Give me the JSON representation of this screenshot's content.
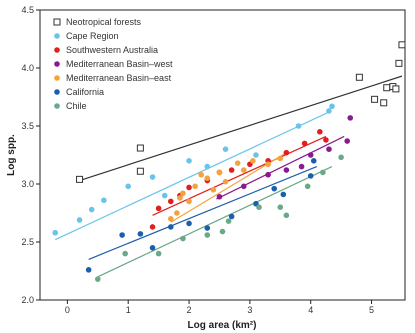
{
  "chart_data": {
    "type": "scatter",
    "xlabel": "Log area (km²)",
    "ylabel": "Log spp.",
    "xlim": [
      -0.45,
      5.55
    ],
    "ylim": [
      2.0,
      4.5
    ],
    "xticks": [
      0,
      1,
      2,
      3,
      4,
      5
    ],
    "yticks": [
      2.0,
      2.5,
      3.0,
      3.5,
      4.0,
      4.5
    ],
    "xtick_labels": [
      "0",
      "1",
      "2",
      "3",
      "4",
      "5"
    ],
    "ytick_labels": [
      "2.0",
      "2.5",
      "3.0",
      "3.5",
      "4.0",
      "4.5"
    ],
    "grid": false,
    "legend_position": "top-left",
    "series": [
      {
        "name": "Neotropical forests",
        "color": "#333333",
        "marker": "open-square",
        "points": [
          [
            0.2,
            3.04
          ],
          [
            1.2,
            3.31
          ],
          [
            1.2,
            3.11
          ],
          [
            4.8,
            3.92
          ],
          [
            5.05,
            3.73
          ],
          [
            5.25,
            3.83
          ],
          [
            5.35,
            3.84
          ],
          [
            5.4,
            3.82
          ],
          [
            5.45,
            4.04
          ],
          [
            5.5,
            4.2
          ],
          [
            5.2,
            3.7
          ]
        ],
        "fit": [
          [
            0.2,
            3.03
          ],
          [
            5.5,
            3.93
          ]
        ]
      },
      {
        "name": "Cape Region",
        "color": "#6ac4ea",
        "marker": "circle",
        "points": [
          [
            -0.2,
            2.58
          ],
          [
            0.2,
            2.69
          ],
          [
            0.4,
            2.78
          ],
          [
            0.6,
            2.86
          ],
          [
            1.0,
            2.98
          ],
          [
            1.4,
            3.06
          ],
          [
            1.6,
            2.9
          ],
          [
            2.0,
            3.2
          ],
          [
            2.3,
            3.15
          ],
          [
            2.6,
            3.3
          ],
          [
            3.1,
            3.25
          ],
          [
            3.8,
            3.5
          ],
          [
            4.3,
            3.63
          ],
          [
            4.35,
            3.67
          ]
        ],
        "fit": [
          [
            -0.2,
            2.52
          ],
          [
            4.3,
            3.62
          ]
        ]
      },
      {
        "name": "Southwestern Australia",
        "color": "#e02020",
        "marker": "circle",
        "points": [
          [
            1.4,
            2.63
          ],
          [
            1.5,
            2.79
          ],
          [
            1.7,
            2.85
          ],
          [
            1.85,
            2.9
          ],
          [
            2.0,
            2.97
          ],
          [
            2.3,
            3.03
          ],
          [
            2.5,
            3.1
          ],
          [
            2.7,
            3.12
          ],
          [
            3.0,
            3.17
          ],
          [
            3.3,
            3.2
          ],
          [
            3.6,
            3.27
          ],
          [
            3.9,
            3.35
          ],
          [
            4.15,
            3.45
          ],
          [
            4.25,
            3.38
          ]
        ],
        "fit": [
          [
            1.4,
            2.73
          ],
          [
            4.25,
            3.41
          ]
        ]
      },
      {
        "name": "Mediterranean Basin–west",
        "color": "#8b1a8f",
        "marker": "circle",
        "points": [
          [
            2.5,
            2.89
          ],
          [
            2.9,
            2.98
          ],
          [
            3.3,
            3.08
          ],
          [
            3.6,
            3.12
          ],
          [
            4.0,
            3.25
          ],
          [
            4.6,
            3.37
          ],
          [
            4.65,
            3.57
          ],
          [
            4.3,
            3.3
          ],
          [
            3.85,
            3.15
          ]
        ],
        "fit": [
          [
            2.45,
            2.87
          ],
          [
            4.55,
            3.41
          ]
        ]
      },
      {
        "name": "Mediterranean Basin–east",
        "color": "#f4a23c",
        "marker": "circle",
        "points": [
          [
            1.7,
            2.7
          ],
          [
            1.8,
            2.75
          ],
          [
            1.85,
            2.88
          ],
          [
            1.9,
            2.92
          ],
          [
            2.0,
            2.85
          ],
          [
            2.1,
            2.98
          ],
          [
            2.2,
            3.08
          ],
          [
            2.3,
            3.05
          ],
          [
            2.4,
            2.95
          ],
          [
            2.5,
            3.1
          ],
          [
            2.6,
            3.02
          ],
          [
            2.8,
            3.18
          ],
          [
            2.9,
            3.12
          ],
          [
            3.05,
            3.2
          ],
          [
            3.3,
            3.17
          ],
          [
            3.5,
            3.22
          ]
        ],
        "fit": [
          [
            1.7,
            2.67
          ],
          [
            3.6,
            3.27
          ]
        ]
      },
      {
        "name": "California",
        "color": "#1a5fae",
        "marker": "circle",
        "points": [
          [
            0.35,
            2.26
          ],
          [
            0.9,
            2.56
          ],
          [
            1.2,
            2.57
          ],
          [
            1.4,
            2.45
          ],
          [
            1.7,
            2.63
          ],
          [
            2.0,
            2.66
          ],
          [
            2.3,
            2.62
          ],
          [
            2.7,
            2.72
          ],
          [
            3.1,
            2.83
          ],
          [
            3.4,
            2.96
          ],
          [
            3.55,
            2.91
          ],
          [
            4.0,
            3.07
          ],
          [
            4.05,
            3.2
          ]
        ],
        "fit": [
          [
            0.35,
            2.35
          ],
          [
            4.1,
            3.15
          ]
        ]
      },
      {
        "name": "Chile",
        "color": "#6aa88a",
        "marker": "circle",
        "points": [
          [
            0.5,
            2.18
          ],
          [
            0.95,
            2.4
          ],
          [
            1.5,
            2.4
          ],
          [
            1.9,
            2.53
          ],
          [
            2.3,
            2.56
          ],
          [
            2.55,
            2.59
          ],
          [
            2.65,
            2.68
          ],
          [
            3.15,
            2.8
          ],
          [
            3.5,
            2.8
          ],
          [
            3.6,
            2.73
          ],
          [
            3.95,
            2.98
          ],
          [
            4.2,
            3.1
          ],
          [
            4.5,
            3.23
          ]
        ],
        "fit": [
          [
            0.5,
            2.2
          ],
          [
            4.35,
            3.15
          ]
        ]
      }
    ]
  }
}
